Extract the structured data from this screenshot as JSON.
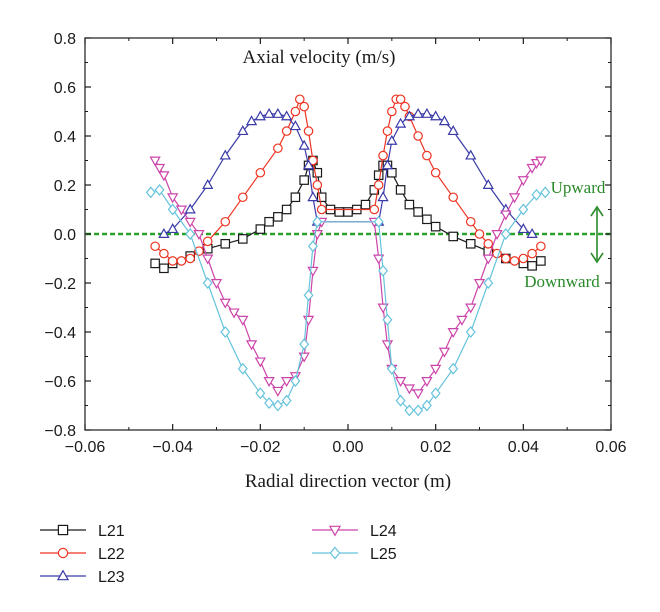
{
  "chart_data": {
    "type": "line",
    "title": "Axial velocity (m/s)",
    "xlabel": "Radial direction vector (m)",
    "ylabel": "",
    "xlim": [
      -0.06,
      0.06
    ],
    "ylim": [
      -0.8,
      0.8
    ],
    "x_ticks": [
      -0.06,
      -0.04,
      -0.02,
      0.0,
      0.02,
      0.04,
      0.06
    ],
    "x_tick_labels": [
      "−0.06",
      "−0.04",
      "−0.02",
      "0.00",
      "0.02",
      "0.04",
      "0.06"
    ],
    "y_ticks": [
      -0.8,
      -0.6,
      -0.4,
      -0.2,
      0.0,
      0.2,
      0.4,
      0.6,
      0.8
    ],
    "y_tick_labels": [
      "−0.8",
      "−0.6",
      "−0.4",
      "−0.2",
      "0.0",
      "0.2",
      "0.4",
      "0.6",
      "0.8"
    ],
    "grid": false,
    "legend_position": "below plot",
    "series": [
      {
        "name": "L21",
        "color": "#1a1a1a",
        "marker": "square",
        "x": [
          -0.044,
          -0.042,
          -0.04,
          -0.036,
          -0.032,
          -0.028,
          -0.024,
          -0.02,
          -0.018,
          -0.016,
          -0.014,
          -0.012,
          -0.01,
          -0.009,
          -0.008,
          -0.007,
          -0.006,
          -0.004,
          -0.002,
          0.0,
          0.002,
          0.004,
          0.006,
          0.007,
          0.008,
          0.009,
          0.01,
          0.012,
          0.014,
          0.016,
          0.018,
          0.02,
          0.024,
          0.028,
          0.032,
          0.036,
          0.04,
          0.042,
          0.044
        ],
        "y": [
          -0.12,
          -0.14,
          -0.12,
          -0.09,
          -0.06,
          -0.04,
          -0.02,
          0.02,
          0.05,
          0.07,
          0.1,
          0.15,
          0.22,
          0.28,
          0.3,
          0.25,
          0.15,
          0.1,
          0.09,
          0.09,
          0.1,
          0.12,
          0.18,
          0.24,
          0.28,
          0.28,
          0.25,
          0.18,
          0.12,
          0.09,
          0.06,
          0.03,
          -0.01,
          -0.04,
          -0.07,
          -0.1,
          -0.12,
          -0.13,
          -0.11
        ]
      },
      {
        "name": "L22",
        "color": "#ee3322",
        "marker": "circle",
        "x": [
          -0.044,
          -0.042,
          -0.04,
          -0.038,
          -0.036,
          -0.034,
          -0.032,
          -0.028,
          -0.024,
          -0.02,
          -0.016,
          -0.014,
          -0.012,
          -0.011,
          -0.01,
          -0.009,
          -0.008,
          -0.007,
          -0.006,
          0.006,
          0.007,
          0.008,
          0.009,
          0.01,
          0.011,
          0.012,
          0.013,
          0.014,
          0.016,
          0.018,
          0.02,
          0.024,
          0.028,
          0.03,
          0.032,
          0.034,
          0.036,
          0.038,
          0.04,
          0.042,
          0.044
        ],
        "y": [
          -0.05,
          -0.08,
          -0.11,
          -0.11,
          -0.1,
          -0.07,
          -0.03,
          0.05,
          0.15,
          0.25,
          0.35,
          0.42,
          0.5,
          0.55,
          0.52,
          0.42,
          0.3,
          0.2,
          0.1,
          0.1,
          0.2,
          0.32,
          0.42,
          0.5,
          0.55,
          0.55,
          0.52,
          0.48,
          0.4,
          0.32,
          0.25,
          0.15,
          0.05,
          0.0,
          -0.04,
          -0.08,
          -0.1,
          -0.11,
          -0.1,
          -0.08,
          -0.05
        ]
      },
      {
        "name": "L23",
        "color": "#3a3aa8",
        "marker": "triangle-up",
        "x": [
          -0.042,
          -0.04,
          -0.036,
          -0.032,
          -0.028,
          -0.024,
          -0.022,
          -0.02,
          -0.018,
          -0.016,
          -0.014,
          -0.012,
          -0.01,
          -0.009,
          -0.008,
          -0.007,
          0.007,
          0.008,
          0.009,
          0.01,
          0.012,
          0.014,
          0.016,
          0.018,
          0.02,
          0.022,
          0.024,
          0.028,
          0.032,
          0.036,
          0.04,
          0.042
        ],
        "y": [
          0.0,
          0.02,
          0.1,
          0.2,
          0.32,
          0.42,
          0.46,
          0.48,
          0.49,
          0.49,
          0.48,
          0.44,
          0.36,
          0.28,
          0.15,
          0.05,
          0.05,
          0.15,
          0.28,
          0.38,
          0.45,
          0.48,
          0.49,
          0.49,
          0.48,
          0.46,
          0.42,
          0.32,
          0.2,
          0.1,
          0.02,
          0.0
        ]
      },
      {
        "name": "L24",
        "color": "#cc44aa",
        "marker": "triangle-down",
        "x": [
          -0.044,
          -0.043,
          -0.042,
          -0.04,
          -0.038,
          -0.036,
          -0.034,
          -0.032,
          -0.03,
          -0.028,
          -0.026,
          -0.024,
          -0.022,
          -0.02,
          -0.018,
          -0.016,
          -0.014,
          -0.012,
          -0.01,
          -0.009,
          -0.008,
          -0.007,
          -0.006,
          0.006,
          0.007,
          0.008,
          0.009,
          0.01,
          0.012,
          0.014,
          0.016,
          0.018,
          0.02,
          0.022,
          0.024,
          0.026,
          0.028,
          0.03,
          0.032,
          0.034,
          0.036,
          0.038,
          0.04,
          0.042,
          0.043,
          0.044
        ],
        "y": [
          0.3,
          0.27,
          0.24,
          0.15,
          0.1,
          0.05,
          0.0,
          -0.1,
          -0.2,
          -0.28,
          -0.32,
          -0.35,
          -0.45,
          -0.52,
          -0.6,
          -0.64,
          -0.6,
          -0.58,
          -0.5,
          -0.35,
          -0.15,
          0.0,
          0.05,
          0.05,
          -0.1,
          -0.3,
          -0.45,
          -0.55,
          -0.6,
          -0.63,
          -0.65,
          -0.6,
          -0.55,
          -0.48,
          -0.4,
          -0.35,
          -0.3,
          -0.2,
          -0.1,
          0.0,
          0.08,
          0.15,
          0.22,
          0.27,
          0.29,
          0.3
        ]
      },
      {
        "name": "L25",
        "color": "#66c3dc",
        "marker": "diamond",
        "x": [
          -0.045,
          -0.043,
          -0.04,
          -0.036,
          -0.032,
          -0.028,
          -0.024,
          -0.02,
          -0.018,
          -0.016,
          -0.014,
          -0.012,
          -0.01,
          -0.009,
          -0.008,
          -0.007,
          0.007,
          0.008,
          0.009,
          0.01,
          0.012,
          0.014,
          0.016,
          0.018,
          0.02,
          0.024,
          0.028,
          0.032,
          0.036,
          0.04,
          0.043,
          0.045
        ],
        "y": [
          0.17,
          0.18,
          0.1,
          0.0,
          -0.2,
          -0.4,
          -0.55,
          -0.65,
          -0.69,
          -0.7,
          -0.68,
          -0.6,
          -0.45,
          -0.25,
          -0.05,
          0.05,
          0.05,
          -0.15,
          -0.35,
          -0.55,
          -0.68,
          -0.72,
          -0.72,
          -0.7,
          -0.65,
          -0.55,
          -0.4,
          -0.2,
          0.0,
          0.1,
          0.16,
          0.17
        ]
      }
    ],
    "reference_line": {
      "y": 0.0,
      "color": "#2aa12a",
      "style": "dashed"
    },
    "annotations": {
      "upward": "Upward",
      "downward": "Downward",
      "color": "#2a8a2a"
    }
  }
}
